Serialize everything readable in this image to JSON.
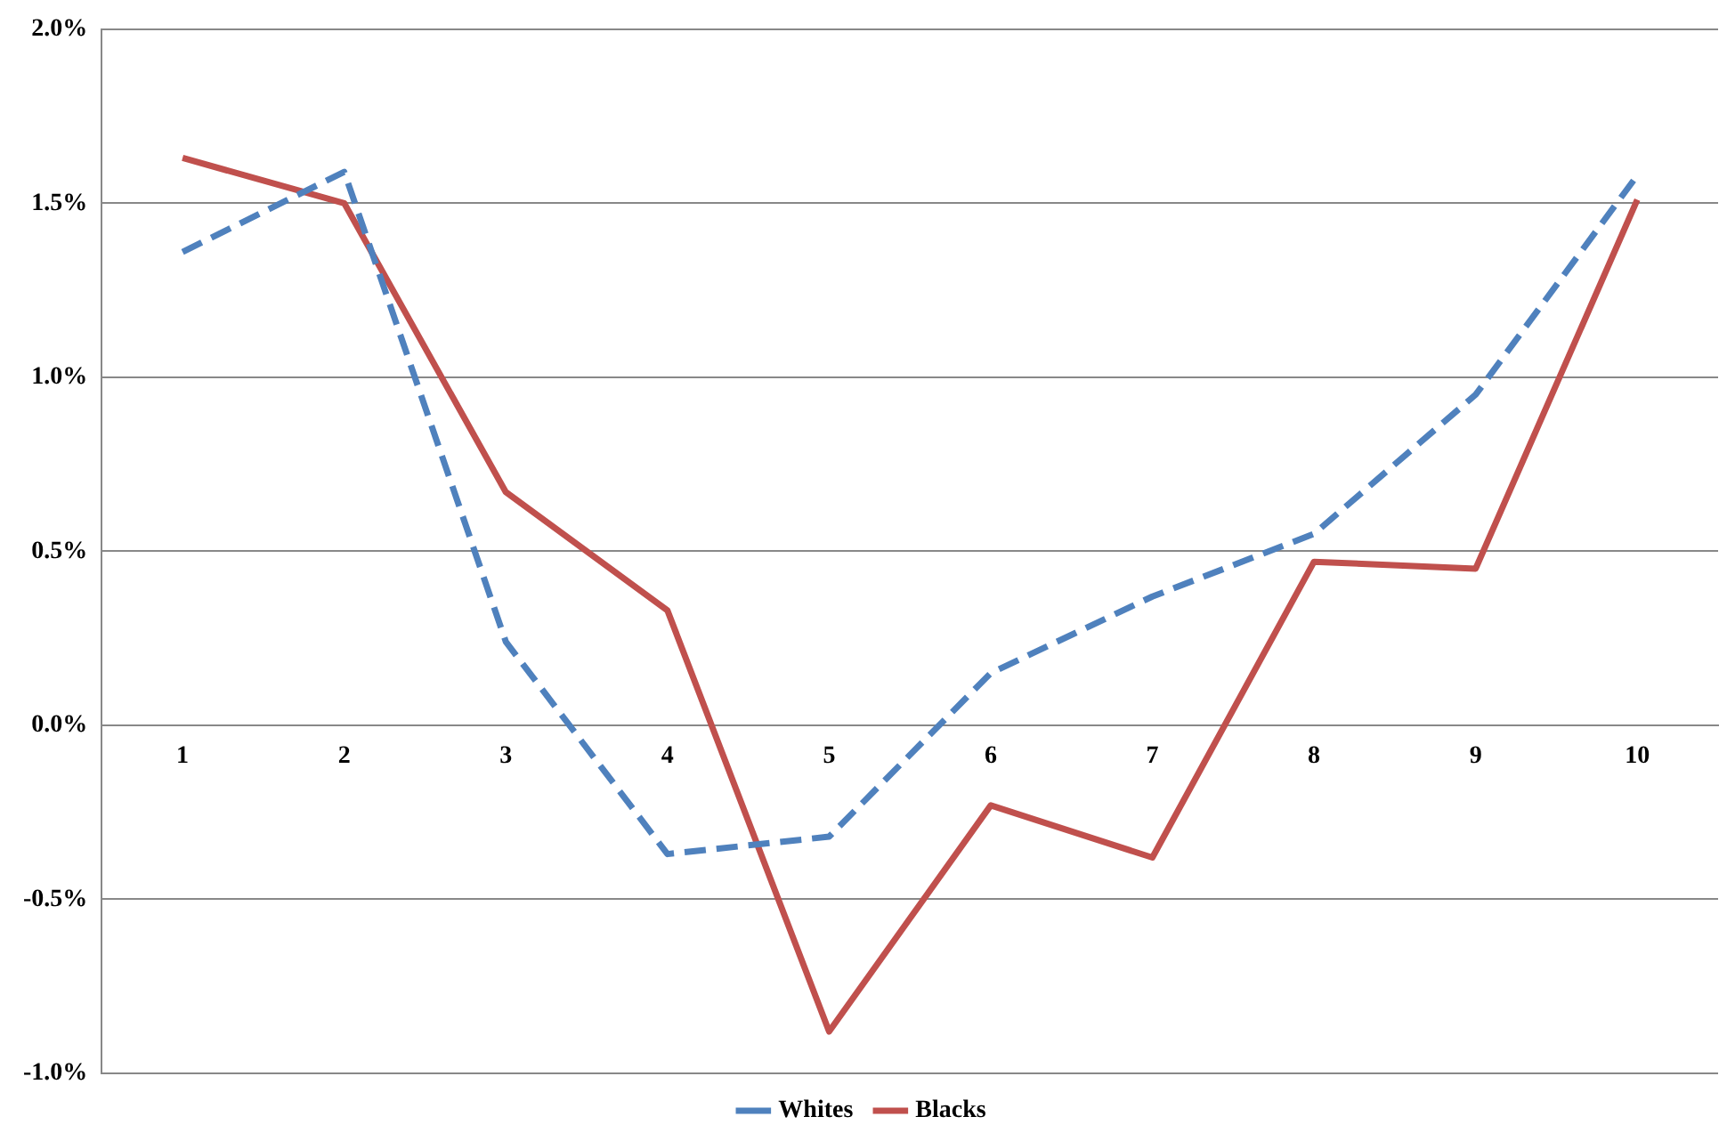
{
  "chart_data": {
    "type": "line",
    "categories": [
      "1",
      "2",
      "3",
      "4",
      "5",
      "6",
      "7",
      "8",
      "9",
      "10"
    ],
    "series": [
      {
        "name": "Whites",
        "color": "#4f81bd",
        "line_style": "dashed",
        "values": [
          1.36,
          1.59,
          0.24,
          -0.37,
          -0.32,
          0.15,
          0.37,
          0.55,
          0.95,
          1.58
        ]
      },
      {
        "name": "Blacks",
        "color": "#c0504d",
        "line_style": "solid",
        "values": [
          1.63,
          1.5,
          0.67,
          0.33,
          -0.88,
          -0.23,
          -0.38,
          0.47,
          0.45,
          1.51
        ]
      }
    ],
    "ylim": [
      -1,
      2
    ],
    "yticks": [
      {
        "value": -1,
        "label": "-1.0%"
      },
      {
        "value": -0.5,
        "label": "-0.5%"
      },
      {
        "value": 0,
        "label": "0.0%"
      },
      {
        "value": 0.5,
        "label": "0.5%"
      },
      {
        "value": 1,
        "label": "1.0%"
      },
      {
        "value": 1.5,
        "label": "1.5%"
      },
      {
        "value": 2,
        "label": "2.0%"
      }
    ],
    "grid": "y",
    "legend": "bottom",
    "marker": "none"
  }
}
